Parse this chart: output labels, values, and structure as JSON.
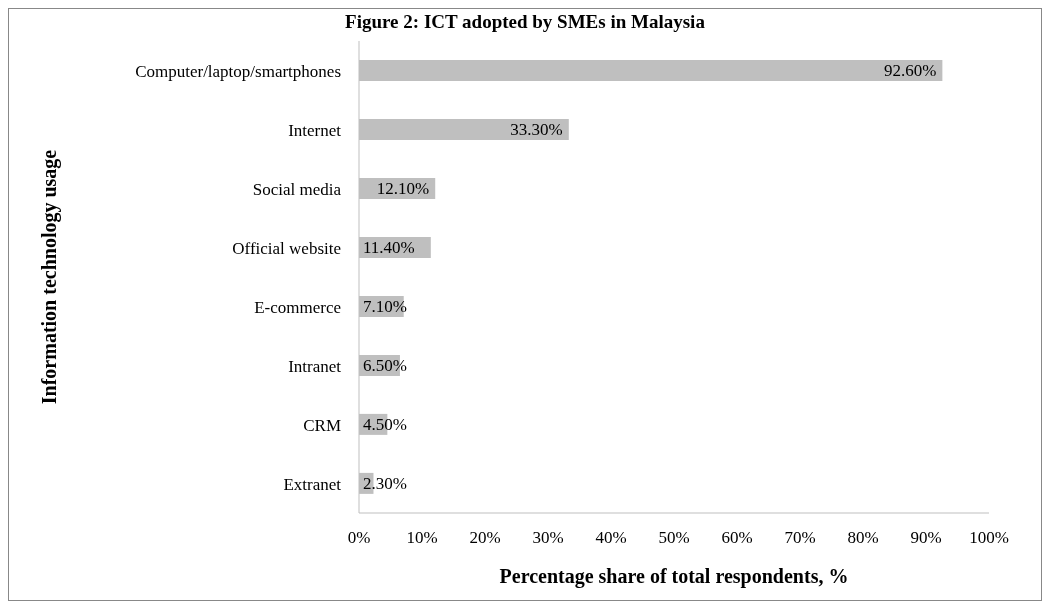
{
  "chart_data": {
    "type": "bar",
    "orientation": "horizontal",
    "title": "Figure 2: ICT adopted by SMEs in Malaysia",
    "xlabel": "Percentage share of total respondents, %",
    "ylabel": "Information technology usage",
    "categories": [
      "Computer/laptop/smartphones",
      "Internet",
      "Social media",
      "Official website",
      "E-commerce",
      "Intranet",
      "CRM",
      "Extranet"
    ],
    "values": [
      92.6,
      33.3,
      12.1,
      11.4,
      7.1,
      6.5,
      4.5,
      2.3
    ],
    "value_labels": [
      "92.60%",
      "33.30%",
      "12.10%",
      "11.40%",
      "7.10%",
      "6.50%",
      "4.50%",
      "2.30%"
    ],
    "color": "#bfbfbf",
    "xlim": [
      0,
      100
    ],
    "xticks": [
      {
        "value": 0,
        "label": "0%"
      },
      {
        "value": 10,
        "label": "10%"
      },
      {
        "value": 20,
        "label": "20%"
      },
      {
        "value": 30,
        "label": "30%"
      },
      {
        "value": 40,
        "label": "40%"
      },
      {
        "value": 50,
        "label": "50%"
      },
      {
        "value": 60,
        "label": "60%"
      },
      {
        "value": 70,
        "label": "70%"
      },
      {
        "value": 80,
        "label": "80%"
      },
      {
        "value": 90,
        "label": "90%"
      },
      {
        "value": 100,
        "label": "100%"
      }
    ],
    "grid": false,
    "legend": false
  }
}
